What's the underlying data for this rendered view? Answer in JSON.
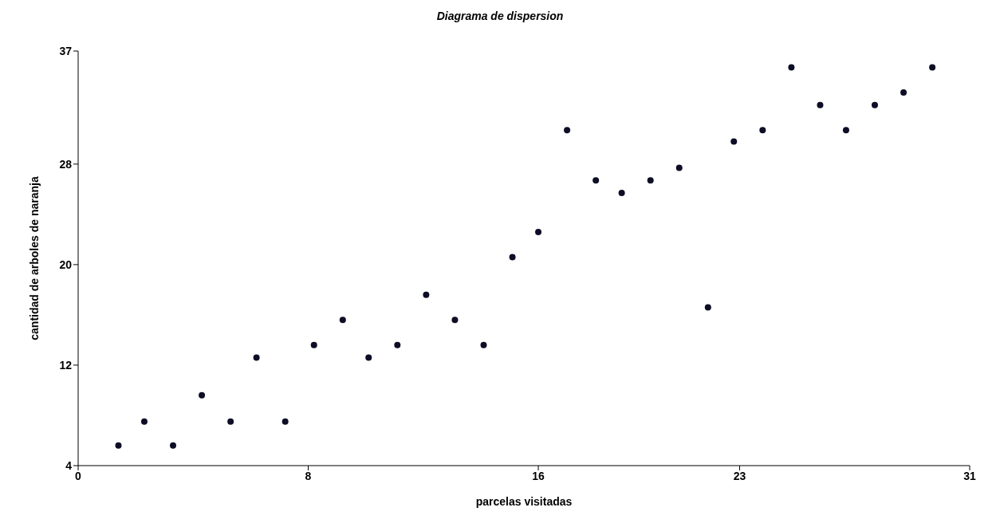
{
  "chart_data": {
    "type": "scatter",
    "title": "Diagrama de dispersion",
    "xlabel": "parcelas visitadas",
    "ylabel": "cantidad de arboles de naranja",
    "x": [
      1.4,
      2.3,
      3.3,
      4.3,
      5.3,
      6.2,
      7.2,
      8.2,
      9.2,
      10.1,
      11.1,
      12.1,
      13.1,
      14.1,
      15.1,
      16.0,
      17.0,
      18.0,
      18.9,
      19.9,
      20.9,
      21.9,
      22.8,
      23.8,
      24.8,
      25.8,
      26.7,
      27.7,
      28.7,
      29.7
    ],
    "series": [
      {
        "color": "#0d0d26",
        "values": [
          5.6,
          7.5,
          5.6,
          9.6,
          7.5,
          12.6,
          7.5,
          13.6,
          15.6,
          12.6,
          13.6,
          17.6,
          15.6,
          13.6,
          20.6,
          22.6,
          30.7,
          26.7,
          25.7,
          26.7,
          27.7,
          16.6,
          29.8,
          30.7,
          35.7,
          32.7,
          30.7,
          32.7,
          33.7,
          35.7
        ]
      }
    ],
    "xlim": [
      0,
      31
    ],
    "xticks": [
      0,
      8,
      16,
      23,
      31
    ],
    "ylim": [
      4,
      37
    ],
    "yticks": [
      4,
      12,
      20,
      28,
      37
    ],
    "grid": false,
    "legend": false,
    "marker": "circle"
  }
}
